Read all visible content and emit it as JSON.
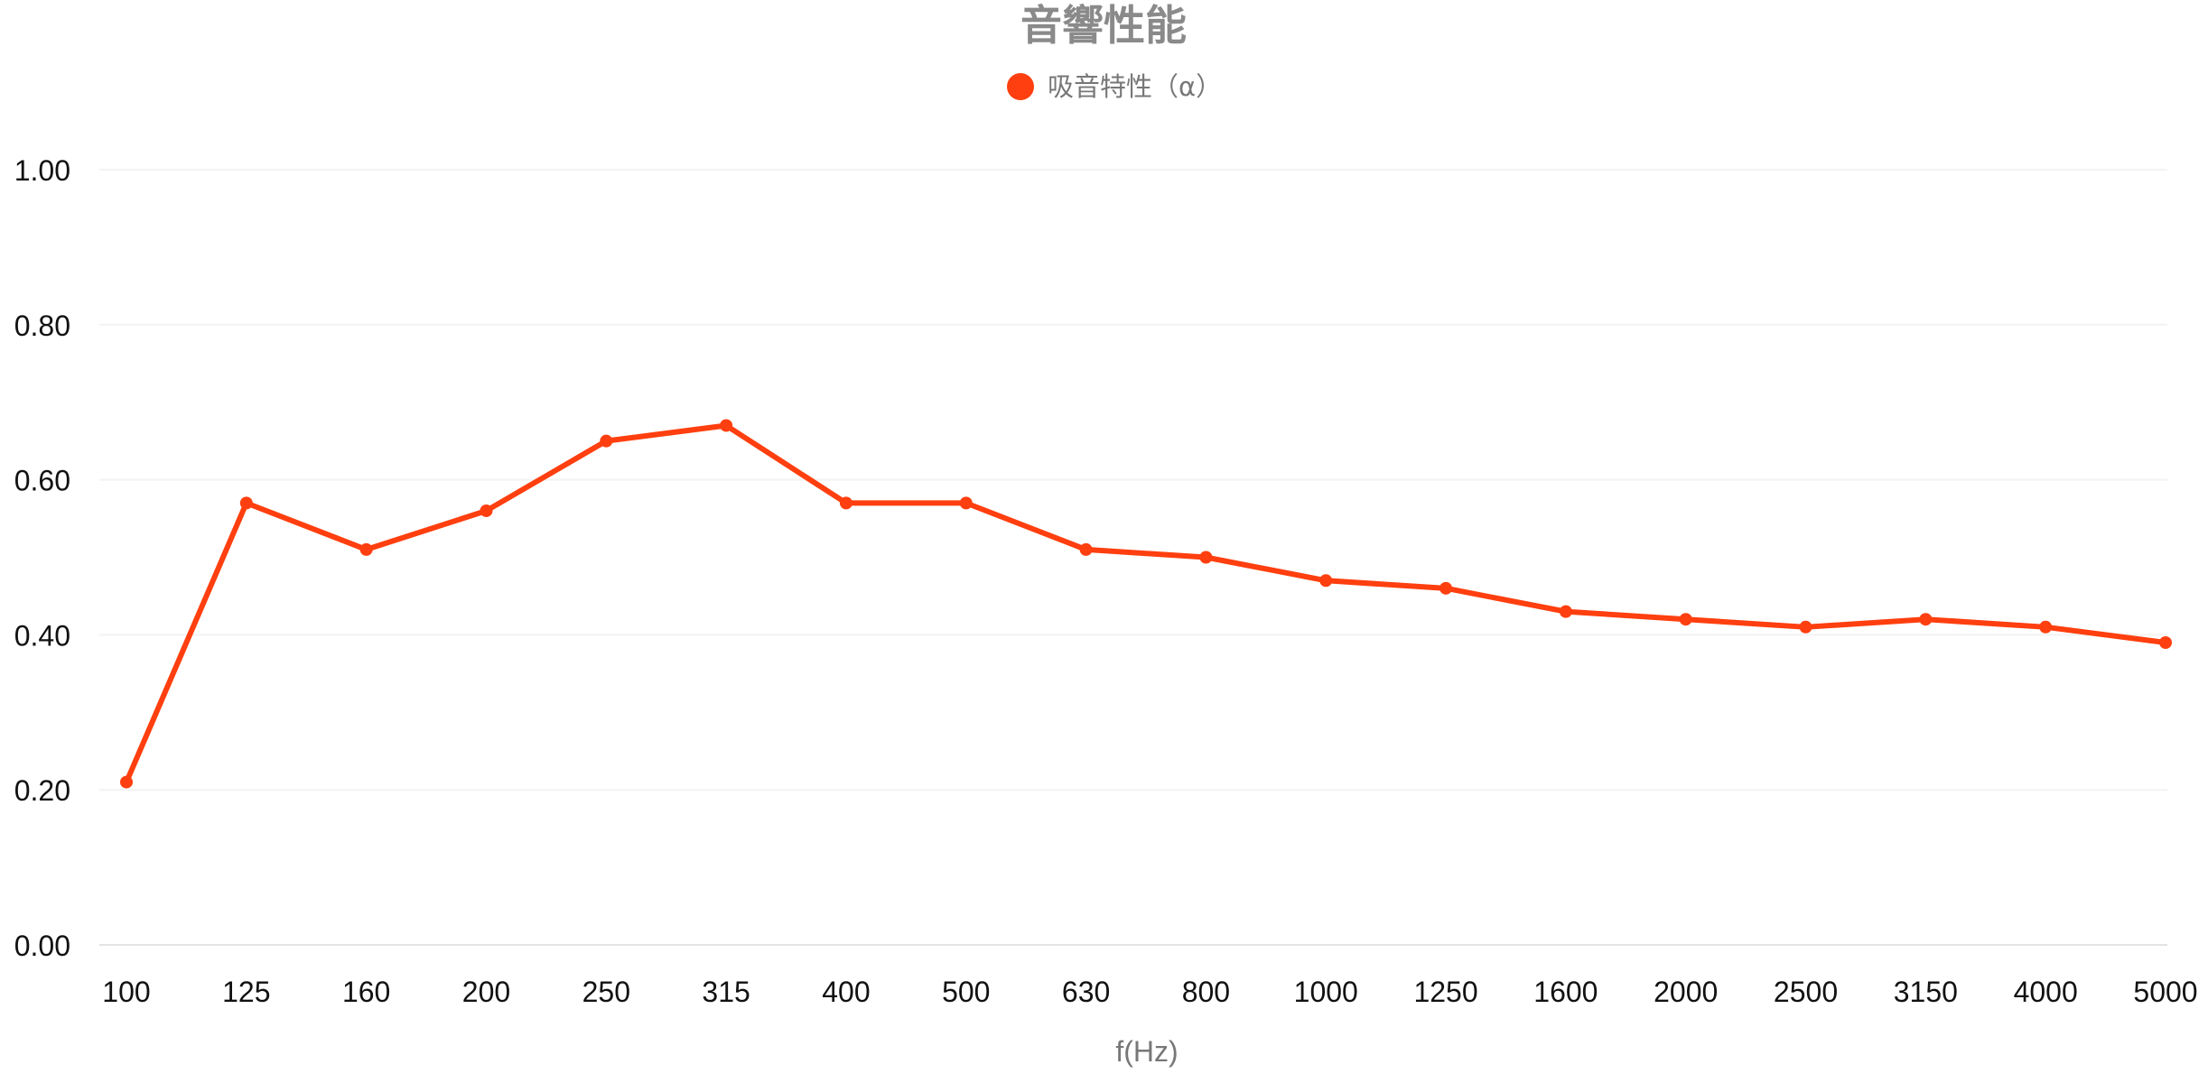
{
  "chart_data": {
    "type": "line",
    "title": "音響性能",
    "xlabel": "f(Hz)",
    "ylabel": "",
    "categories": [
      "100",
      "125",
      "160",
      "200",
      "250",
      "315",
      "400",
      "500",
      "630",
      "800",
      "1000",
      "1250",
      "1600",
      "2000",
      "2500",
      "3150",
      "4000",
      "5000"
    ],
    "series": [
      {
        "name": "吸音特性（α）",
        "values": [
          0.21,
          0.57,
          0.51,
          0.56,
          0.65,
          0.67,
          0.57,
          0.57,
          0.51,
          0.5,
          0.47,
          0.46,
          0.43,
          0.42,
          0.41,
          0.42,
          0.41,
          0.39
        ]
      }
    ],
    "yticks": [
      "0.00",
      "0.20",
      "0.40",
      "0.60",
      "0.80",
      "1.00"
    ],
    "ylim": [
      0,
      1
    ],
    "grid": true,
    "legend_position": "top-center",
    "colors": {
      "series": "#ff3f0f",
      "title": "#8a8a8a",
      "legend_text": "#777777",
      "axis_title": "#777777",
      "tick_text": "#111111",
      "grid": "#f3f3f3",
      "baseline": "#e3e3e3"
    }
  }
}
